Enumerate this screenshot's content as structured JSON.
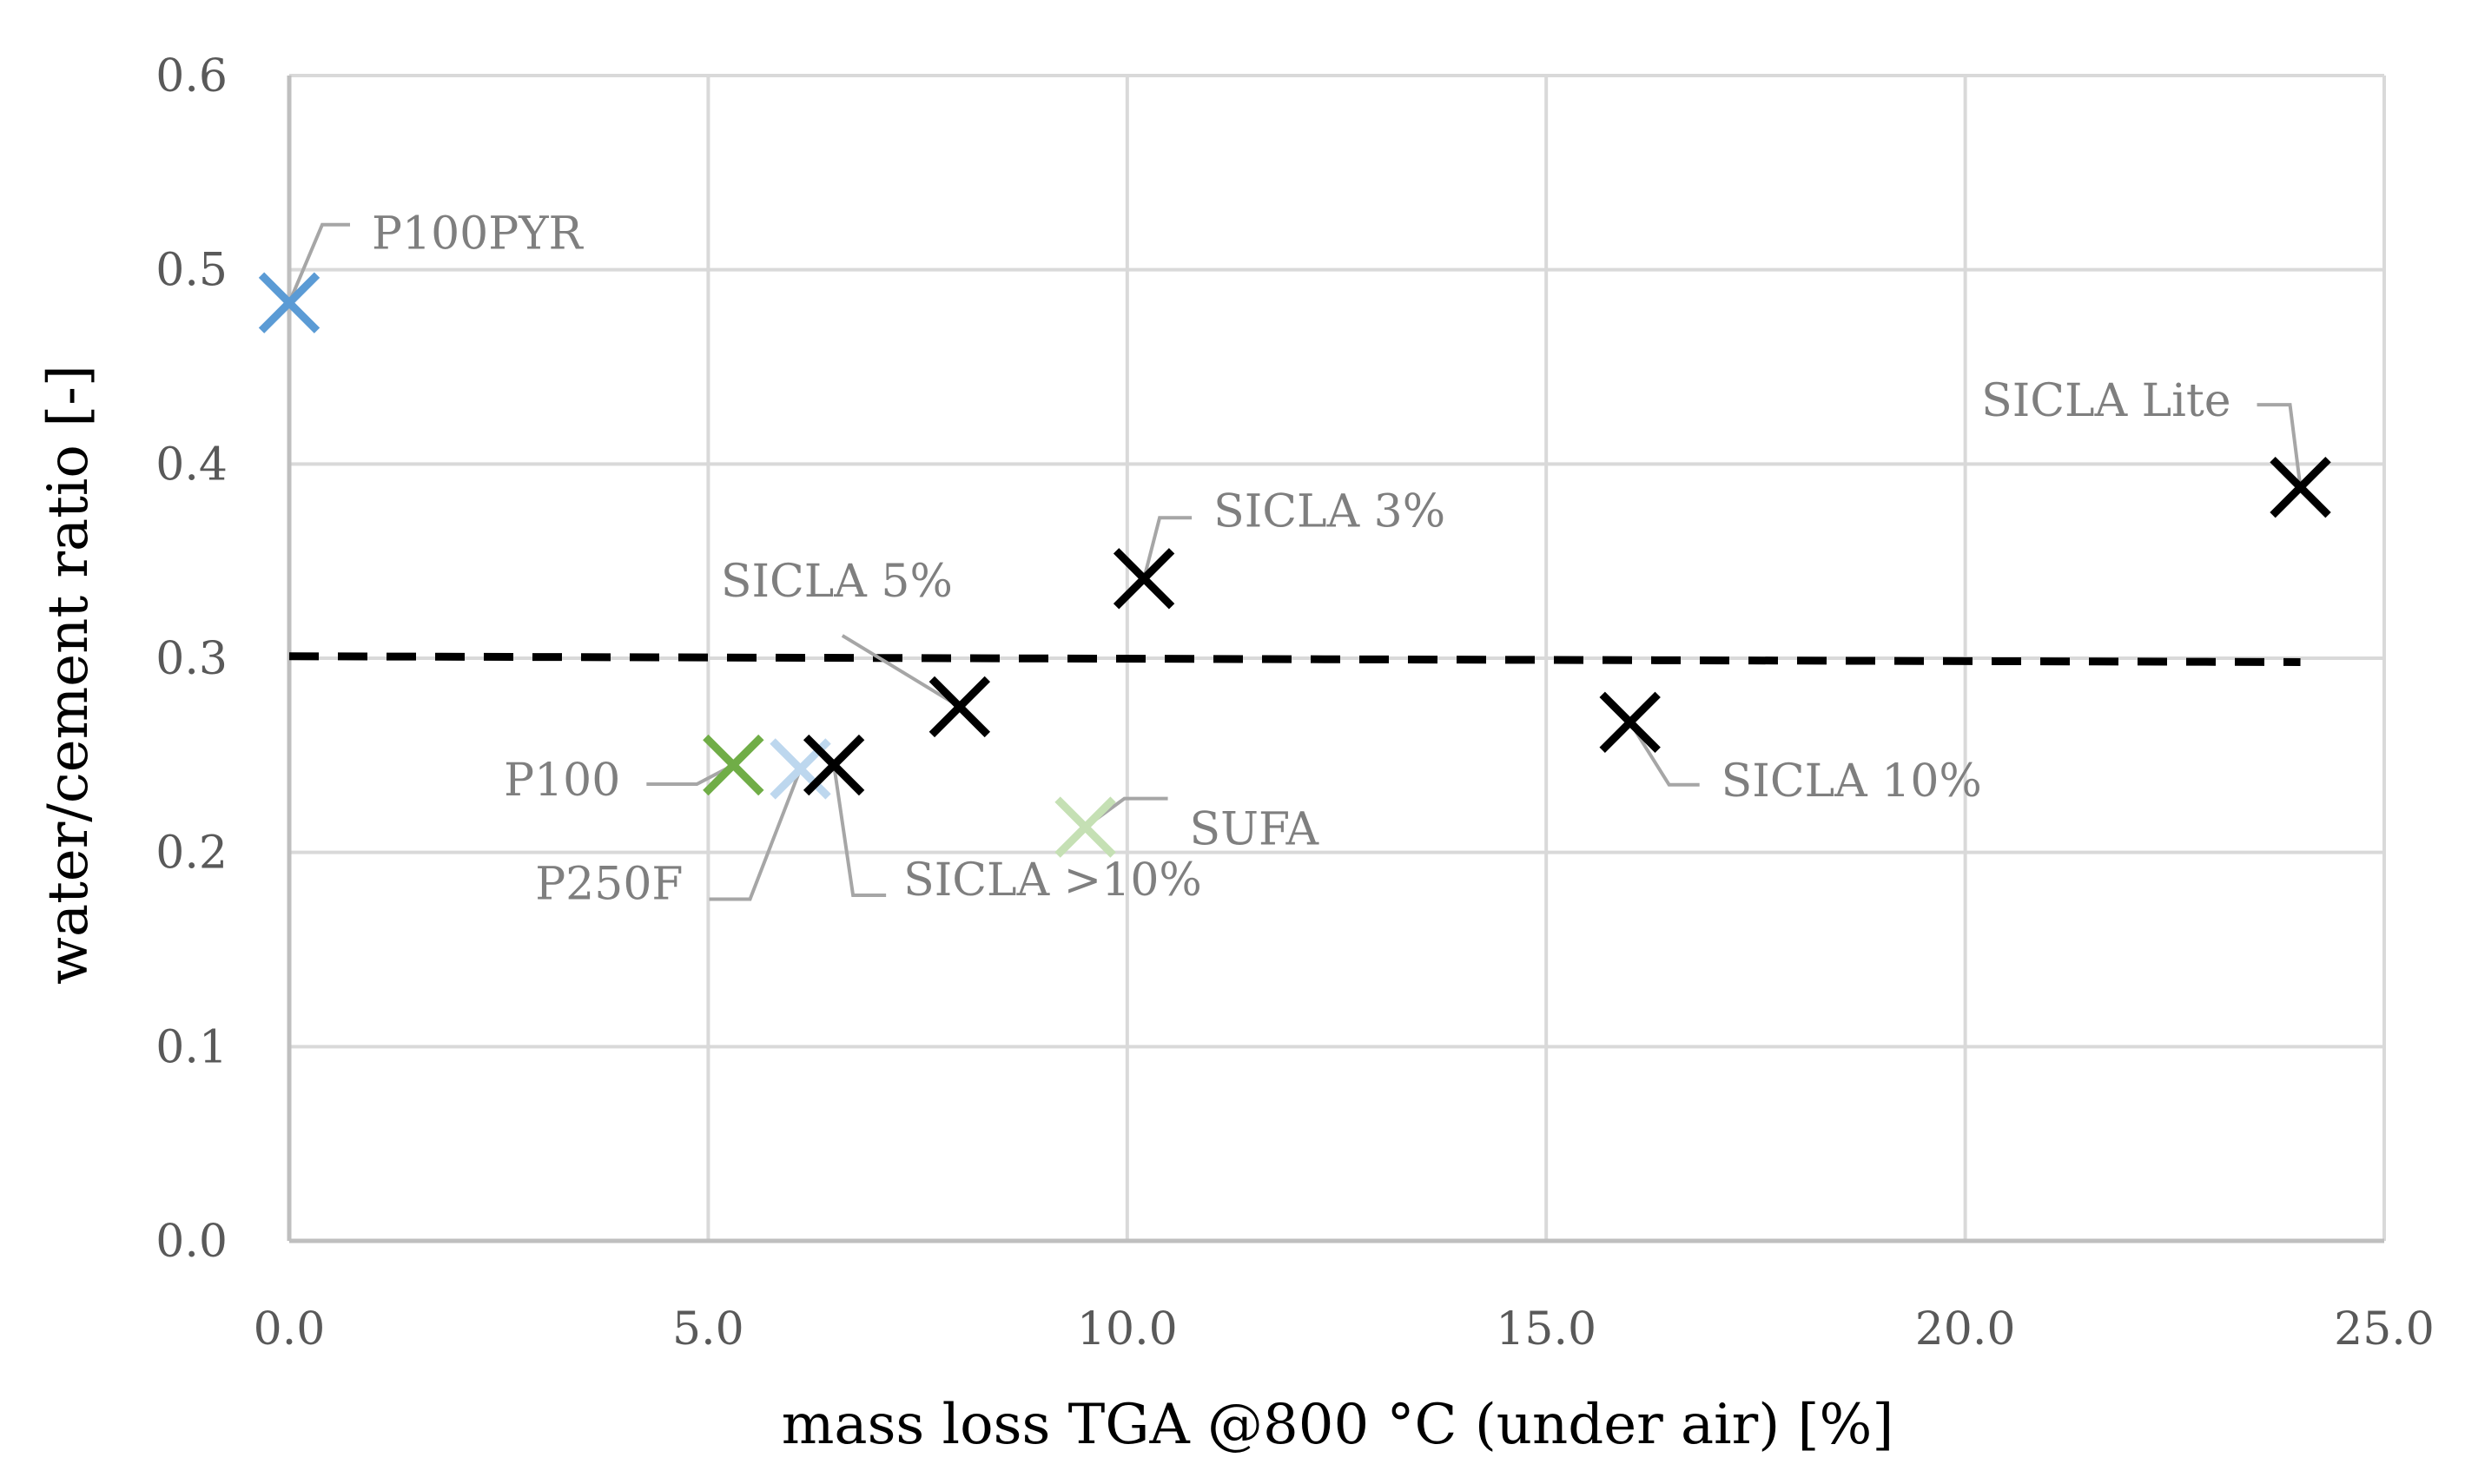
{
  "chart_data": {
    "type": "scatter",
    "title": "",
    "xlabel": "mass loss TGA @800 °C (under air) [%]",
    "ylabel": "water/cement ratio [-]",
    "xlim": [
      0,
      25
    ],
    "ylim": [
      0,
      0.6
    ],
    "x_ticks": [
      0,
      5,
      10,
      15,
      20,
      25
    ],
    "x_tick_labels": [
      "0.0",
      "5.0",
      "10.0",
      "15.0",
      "20.0",
      "25.0"
    ],
    "y_ticks": [
      0,
      0.1,
      0.2,
      0.3,
      0.4,
      0.5,
      0.6
    ],
    "y_tick_labels": [
      "0.0",
      "0.1",
      "0.2",
      "0.3",
      "0.4",
      "0.5",
      "0.6"
    ],
    "grid": true,
    "marker": "x",
    "points": [
      {
        "label": "P100PYR",
        "x": 0.0,
        "y": 0.483,
        "color": "#5b9bd5"
      },
      {
        "label": "P100",
        "x": 5.3,
        "y": 0.245,
        "color": "#70ad47"
      },
      {
        "label": "P250F",
        "x": 6.1,
        "y": 0.243,
        "color": "#bdd7ee"
      },
      {
        "label": "SICLA >10%",
        "x": 6.5,
        "y": 0.245,
        "color": "#000000"
      },
      {
        "label": "SICLA 5%",
        "x": 8.0,
        "y": 0.275,
        "color": "#000000"
      },
      {
        "label": "SUFA",
        "x": 9.5,
        "y": 0.213,
        "color": "#c5e0b4"
      },
      {
        "label": "SICLA 3%",
        "x": 10.2,
        "y": 0.341,
        "color": "#000000"
      },
      {
        "label": "SICLA 10%",
        "x": 16.0,
        "y": 0.267,
        "color": "#000000"
      },
      {
        "label": "SICLA Lite",
        "x": 24.0,
        "y": 0.388,
        "color": "#000000"
      }
    ],
    "reference_line": {
      "style": "dashed",
      "color": "#000000",
      "x": [
        0,
        24
      ],
      "y": [
        0.301,
        0.298
      ]
    }
  }
}
